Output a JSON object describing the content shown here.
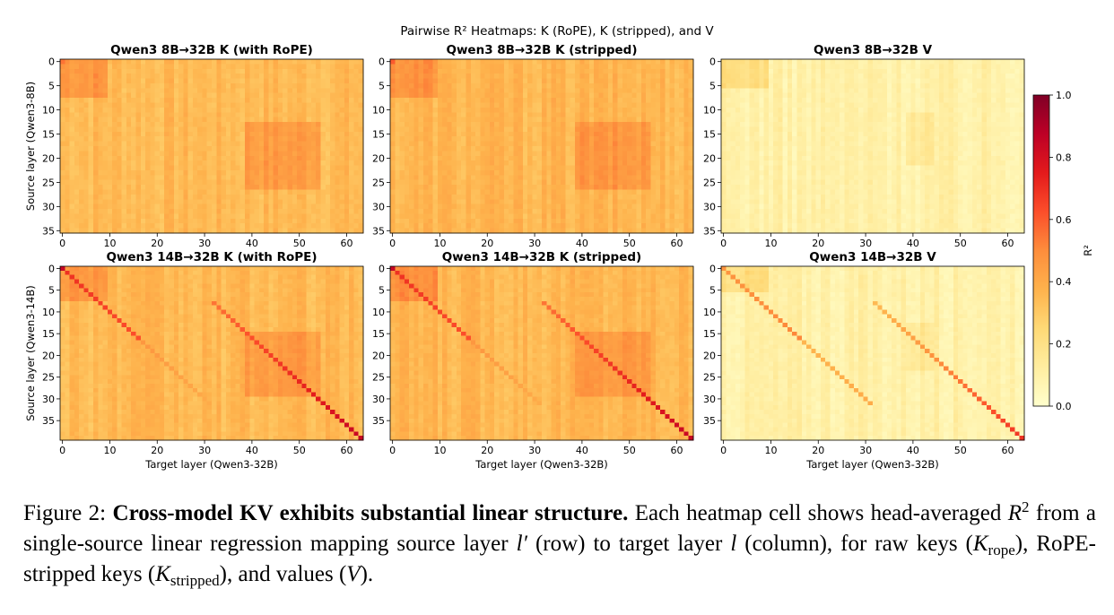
{
  "figure": {
    "suptitle": "Pairwise R² Heatmaps: K (RoPE), K (stripped), and V",
    "xlabel": "Target layer (Qwen3-32B)",
    "colorbar": {
      "label": "R²",
      "ticks": [
        "0.0",
        "0.2",
        "0.4",
        "0.6",
        "0.8",
        "1.0"
      ]
    },
    "colormap": [
      "#ffffcc",
      "#ffeda0",
      "#fed976",
      "#feb24c",
      "#fd8d3c",
      "#fc4e2a",
      "#e31a1c",
      "#bd0026",
      "#800026"
    ]
  },
  "chart_data": [
    {
      "type": "heatmap",
      "title": "Qwen3 8B→32B  K (with RoPE)",
      "ylabel": "Source layer (Qwen3-8B)",
      "xlabel": "",
      "rows": 36,
      "cols": 64,
      "vmin": 0.0,
      "vmax": 1.0,
      "x_ticks": [
        0,
        10,
        20,
        30,
        40,
        50,
        60
      ],
      "y_ticks": [
        0,
        5,
        10,
        15,
        20,
        25,
        30,
        35
      ],
      "approx_base_r2": 0.35,
      "approx_max_r2": 0.55,
      "diagonal": "none"
    },
    {
      "type": "heatmap",
      "title": "Qwen3 8B→32B  K (stripped)",
      "ylabel": "",
      "xlabel": "",
      "rows": 36,
      "cols": 64,
      "vmin": 0.0,
      "vmax": 1.0,
      "x_ticks": [
        0,
        10,
        20,
        30,
        40,
        50,
        60
      ],
      "y_ticks": [
        0,
        5,
        10,
        15,
        20,
        25,
        30,
        35
      ],
      "approx_base_r2": 0.36,
      "approx_max_r2": 0.6,
      "diagonal": "none"
    },
    {
      "type": "heatmap",
      "title": "Qwen3 8B→32B  V",
      "ylabel": "",
      "xlabel": "",
      "rows": 36,
      "cols": 64,
      "vmin": 0.0,
      "vmax": 1.0,
      "x_ticks": [
        0,
        10,
        20,
        30,
        40,
        50,
        60
      ],
      "y_ticks": [
        0,
        5,
        10,
        15,
        20,
        25,
        30,
        35
      ],
      "approx_base_r2": 0.1,
      "approx_max_r2": 0.35,
      "diagonal": "none"
    },
    {
      "type": "heatmap",
      "title": "Qwen3 14B→32B  K (with RoPE)",
      "ylabel": "Source layer (Qwen3-14B)",
      "xlabel": "Target layer (Qwen3-32B)",
      "rows": 40,
      "cols": 64,
      "vmin": 0.0,
      "vmax": 1.0,
      "x_ticks": [
        0,
        10,
        20,
        30,
        40,
        50,
        60
      ],
      "y_ticks": [
        0,
        5,
        10,
        15,
        20,
        25,
        30,
        35
      ],
      "approx_base_r2": 0.35,
      "approx_max_r2": 0.85,
      "diagonal": "two-segment"
    },
    {
      "type": "heatmap",
      "title": "Qwen3 14B→32B  K (stripped)",
      "ylabel": "",
      "xlabel": "Target layer (Qwen3-32B)",
      "rows": 40,
      "cols": 64,
      "vmin": 0.0,
      "vmax": 1.0,
      "x_ticks": [
        0,
        10,
        20,
        30,
        40,
        50,
        60
      ],
      "y_ticks": [
        0,
        5,
        10,
        15,
        20,
        25,
        30,
        35
      ],
      "approx_base_r2": 0.36,
      "approx_max_r2": 0.85,
      "diagonal": "two-segment"
    },
    {
      "type": "heatmap",
      "title": "Qwen3 14B→32B  V",
      "ylabel": "",
      "xlabel": "Target layer (Qwen3-32B)",
      "rows": 40,
      "cols": 64,
      "vmin": 0.0,
      "vmax": 1.0,
      "x_ticks": [
        0,
        10,
        20,
        30,
        40,
        50,
        60
      ],
      "y_ticks": [
        0,
        5,
        10,
        15,
        20,
        25,
        30,
        35
      ],
      "approx_base_r2": 0.1,
      "approx_max_r2": 0.7,
      "diagonal": "two-segment"
    }
  ],
  "caption": {
    "label": "Figure 2:",
    "bold": "Cross-model KV exhibits substantial linear structure.",
    "t1": "Each heatmap cell shows head-averaged",
    "r": "R",
    "sup2": "2",
    "t2": "from a single-source linear regression mapping source layer",
    "lprime": "l′",
    "t3": "(row) to target layer",
    "l": "l",
    "t4": "(column), for raw keys (",
    "K1": "K",
    "sub_rope": "rope",
    "t5": "), RoPE-stripped keys (",
    "K2": "K",
    "sub_stripped": "stripped",
    "t6": "), and values (",
    "V": "V",
    "t7": ")."
  }
}
